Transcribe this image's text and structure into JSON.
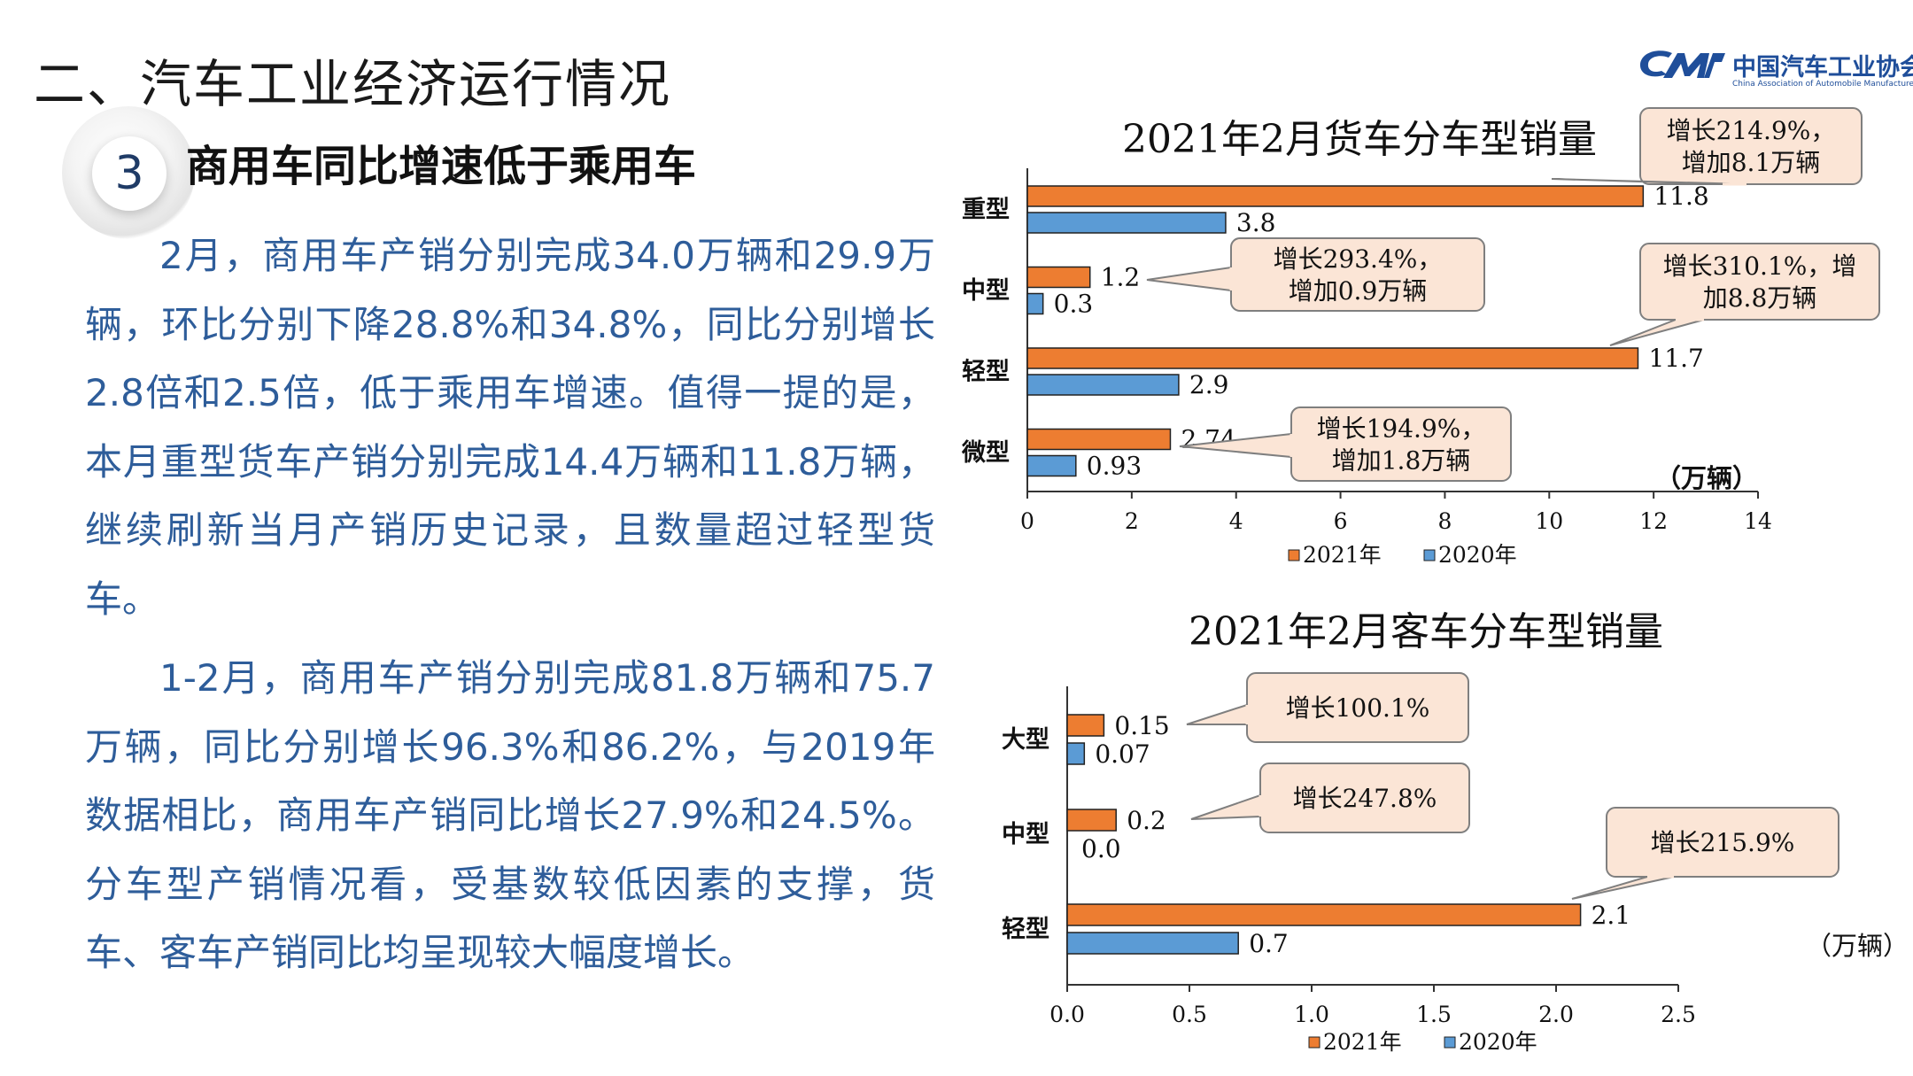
{
  "page": {
    "title": "二、汽车工业经济运行情况",
    "section_number": "3",
    "section_title": "商用车同比增速低于乘用车",
    "paragraphs": [
      "2月，商用车产销分别完成34.0万辆和29.9万辆，环比分别下降28.8%和34.8%，同比分别增长2.8倍和2.5倍，低于乘用车增速。值得一提的是，本月重型货车产销分别完成14.4万辆和11.8万辆，继续刷新当月产销历史记录，且数量超过轻型货车。",
      "1-2月，商用车产销分别完成81.8万辆和75.7万辆，同比分别增长96.3%和86.2%，与2019年数据相比，商用车产销同比增长27.9%和24.5%。分车型产销情况看，受基数较低因素的支撑，货车、客车产销同比均呈现较大幅度增长。"
    ]
  },
  "logo": {
    "cn": "中国汽车工业协会",
    "en": "China Association of Automobile Manufacturers"
  },
  "colors": {
    "series_2021": "#ed7d31",
    "series_2020": "#5b9bd5",
    "text_blue": "#2e5d9a",
    "callout_fill": "#fbe5d6",
    "logo_blue": "#1f4e9a"
  },
  "chart_data": [
    {
      "type": "bar",
      "orientation": "horizontal",
      "title": "2021年2月货车分车型销量",
      "unit_label": "（万辆）",
      "categories": [
        "重型",
        "中型",
        "轻型",
        "微型"
      ],
      "series": [
        {
          "name": "2021年",
          "values": [
            11.8,
            1.2,
            11.7,
            2.74
          ],
          "labels": [
            "11.8",
            "1.2",
            "11.7",
            "2.74"
          ]
        },
        {
          "name": "2020年",
          "values": [
            3.8,
            0.3,
            2.9,
            0.93
          ],
          "labels": [
            "3.8",
            "0.3",
            "2.9",
            "0.93"
          ]
        }
      ],
      "xlim": [
        0,
        14
      ],
      "xticks": [
        "0",
        "2",
        "4",
        "6",
        "8",
        "10",
        "12",
        "14"
      ],
      "legend": "bottom",
      "annotations": [
        {
          "category": "重型",
          "lines": [
            "增长214.9%，",
            "增加8.1万辆"
          ]
        },
        {
          "category": "中型",
          "lines": [
            "增长293.4%，",
            "增加0.9万辆"
          ]
        },
        {
          "category": "轻型",
          "lines": [
            "增长310.1%，增",
            "加8.8万辆"
          ]
        },
        {
          "category": "微型",
          "lines": [
            "增长194.9%，",
            "增加1.8万辆"
          ]
        }
      ]
    },
    {
      "type": "bar",
      "orientation": "horizontal",
      "title": "2021年2月客车分车型销量",
      "unit_label": "（万辆）",
      "categories": [
        "大型",
        "中型",
        "轻型"
      ],
      "series": [
        {
          "name": "2021年",
          "values": [
            0.15,
            0.2,
            2.1
          ],
          "labels": [
            "0.15",
            "0.2",
            "2.1"
          ]
        },
        {
          "name": "2020年",
          "values": [
            0.07,
            0.0,
            0.7
          ],
          "labels": [
            "0.07",
            "0.0",
            "0.7"
          ]
        }
      ],
      "xlim": [
        0,
        2.5
      ],
      "xticks": [
        "0.0",
        "0.5",
        "1.0",
        "1.5",
        "2.0",
        "2.5"
      ],
      "legend": "bottom",
      "annotations": [
        {
          "category": "大型",
          "lines": [
            "增长100.1%"
          ]
        },
        {
          "category": "中型",
          "lines": [
            "增长247.8%"
          ]
        },
        {
          "category": "轻型",
          "lines": [
            "增长215.9%"
          ]
        }
      ]
    }
  ]
}
